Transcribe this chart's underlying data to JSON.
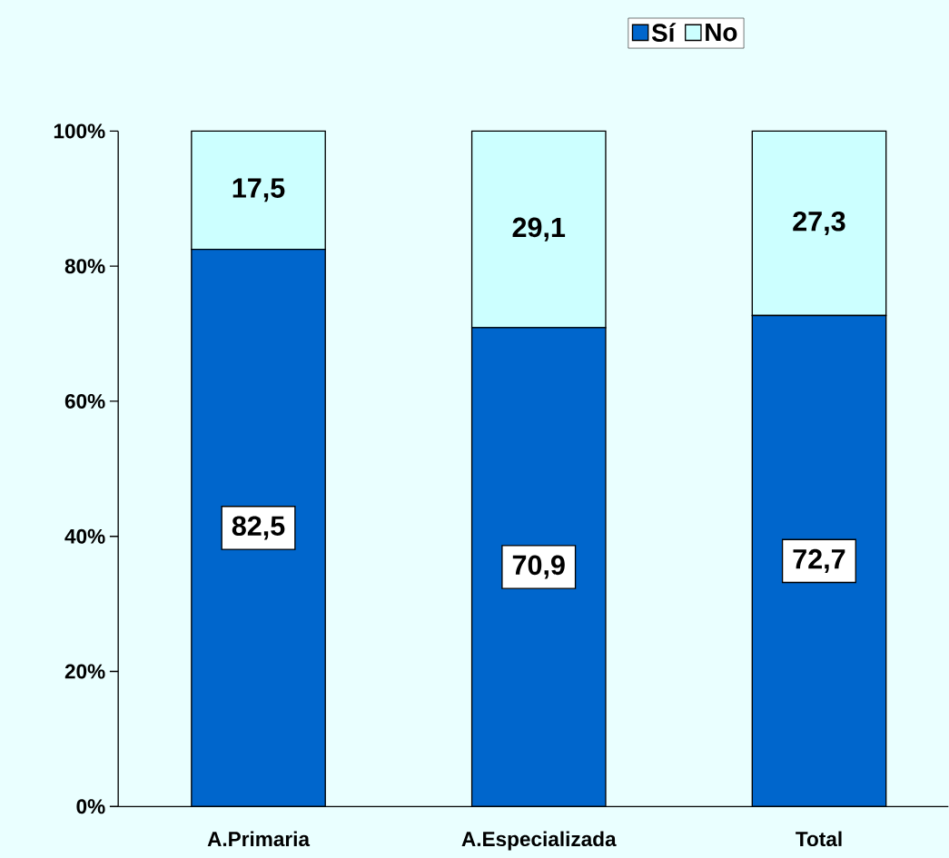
{
  "chart_data": {
    "type": "bar",
    "stacked": true,
    "categories": [
      "A.Primaria",
      "A.Especializada",
      "Total"
    ],
    "series": [
      {
        "name": "Sí",
        "color": "#0066cc",
        "values": [
          82.5,
          70.9,
          72.7
        ],
        "value_labels": [
          "82,5",
          "70,9",
          "72,7"
        ]
      },
      {
        "name": "No",
        "color": "#ccffff",
        "values": [
          17.5,
          29.1,
          27.3
        ],
        "value_labels": [
          "17,5",
          "29,1",
          "27,3"
        ]
      }
    ],
    "ylim": [
      0,
      100
    ],
    "yticks": [
      {
        "value": 0,
        "label": "0%"
      },
      {
        "value": 20,
        "label": "20%"
      },
      {
        "value": 40,
        "label": "40%"
      },
      {
        "value": 60,
        "label": "60%"
      },
      {
        "value": 80,
        "label": "80%"
      },
      {
        "value": 100,
        "label": "100%"
      }
    ],
    "grid": false,
    "legend": "top right"
  }
}
